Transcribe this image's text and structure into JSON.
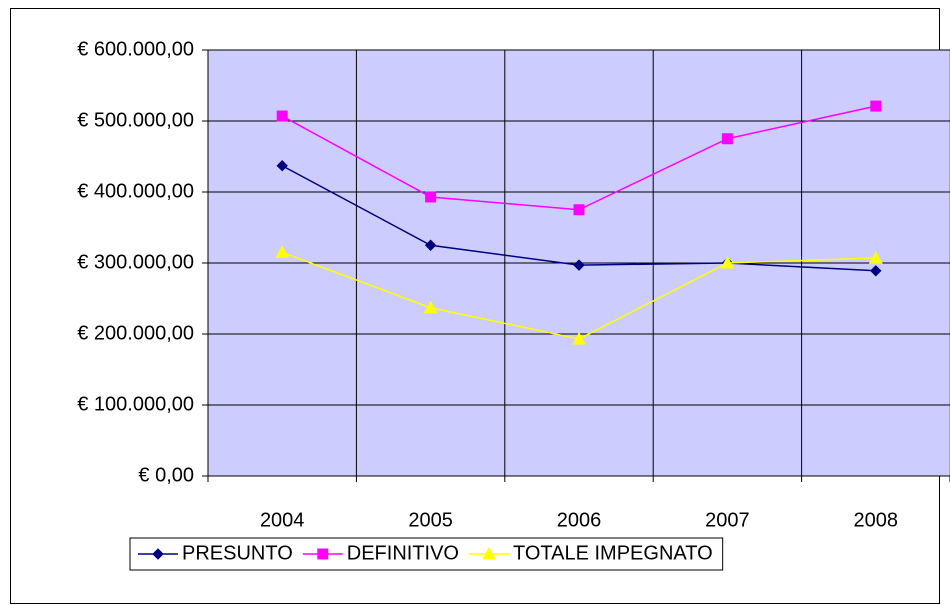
{
  "chart_data": {
    "type": "line",
    "categories": [
      "2004",
      "2005",
      "2006",
      "2007",
      "2008"
    ],
    "series": [
      {
        "name": "PRESUNTO",
        "color": "#000080",
        "marker": "diamond",
        "values": [
          437000,
          325000,
          297000,
          300000,
          289000
        ]
      },
      {
        "name": "DEFINITIVO",
        "color": "#ff00ff",
        "marker": "square",
        "values": [
          507000,
          393000,
          375000,
          475000,
          521000
        ]
      },
      {
        "name": "TOTALE IMPEGNATO",
        "color": "#ffff00",
        "marker": "triangle",
        "values": [
          315000,
          237000,
          193000,
          300000,
          307000
        ]
      }
    ],
    "ylim": [
      0,
      600000
    ],
    "yticks": [
      {
        "value": 0,
        "label": "€ 0,00"
      },
      {
        "value": 100000,
        "label": "€ 100.000,00"
      },
      {
        "value": 200000,
        "label": "€ 200.000,00"
      },
      {
        "value": 300000,
        "label": "€ 300.000,00"
      },
      {
        "value": 400000,
        "label": "€ 400.000,00"
      },
      {
        "value": 500000,
        "label": "€ 500.000,00"
      },
      {
        "value": 600000,
        "label": "€ 600.000,00"
      }
    ],
    "grid": true,
    "plot_background": "#ccccff",
    "legend": "bottom"
  }
}
